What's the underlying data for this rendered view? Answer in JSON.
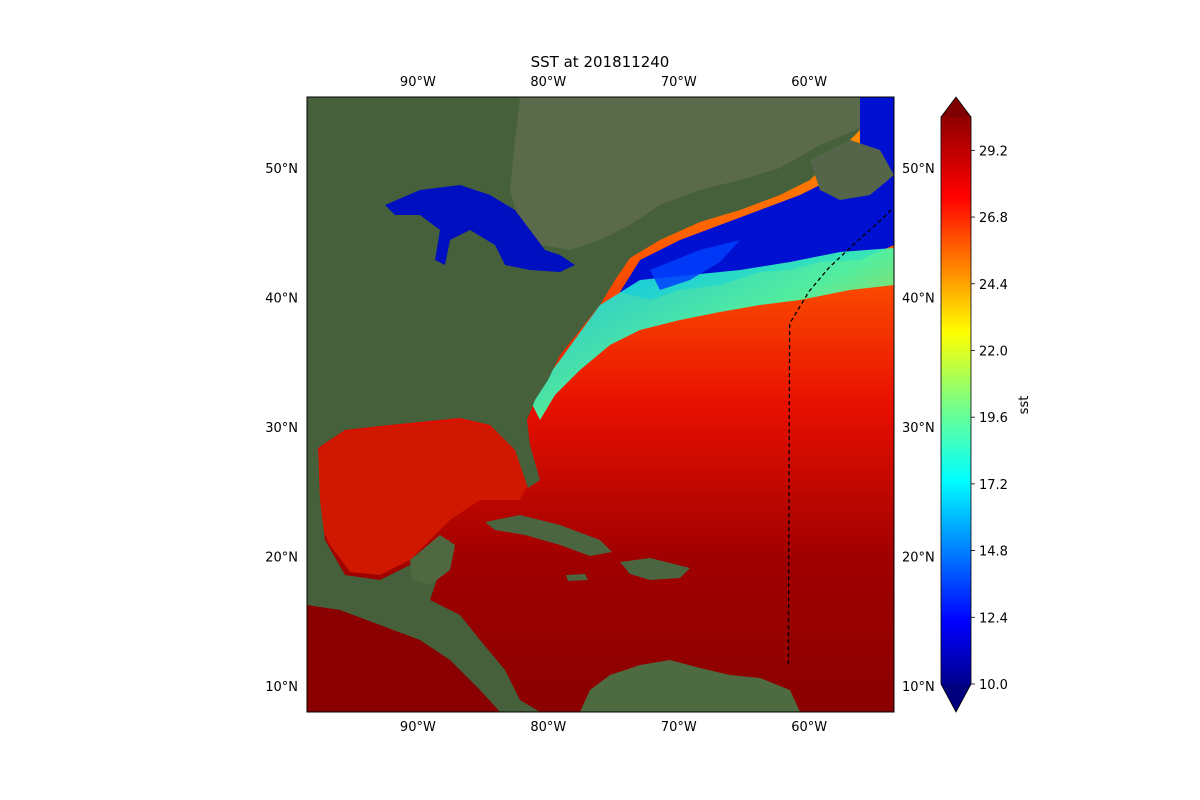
{
  "title": "SST at 201811240",
  "map": {
    "lon_range": [
      -98.5,
      -53.5
    ],
    "lat_range": [
      8,
      55.5
    ],
    "lon_ticks": [
      {
        "value": -90,
        "label": "90°W"
      },
      {
        "value": -80,
        "label": "80°W"
      },
      {
        "value": -70,
        "label": "70°W"
      },
      {
        "value": -60,
        "label": "60°W"
      }
    ],
    "lat_ticks": [
      {
        "value": 10,
        "label": "10°N"
      },
      {
        "value": 20,
        "label": "20°N"
      },
      {
        "value": 30,
        "label": "30°N"
      },
      {
        "value": 40,
        "label": "40°N"
      },
      {
        "value": 50,
        "label": "50°N"
      }
    ],
    "track_line": {
      "style": "dashed",
      "color": "#000000",
      "points": [
        [
          -61.6,
          11.7
        ],
        [
          -61.5,
          38.0
        ],
        [
          -60.0,
          40.5
        ],
        [
          -58.5,
          42.3
        ],
        [
          -56.5,
          44.2
        ],
        [
          -54.5,
          46.0
        ],
        [
          -53.5,
          47.0
        ]
      ]
    },
    "land_colors": {
      "forest": "#3f5a36",
      "dry": "#6e6a50",
      "ocean_bg": "#3a5a8a"
    }
  },
  "colorbar": {
    "label": "sst",
    "min": 10.0,
    "max": 30.4,
    "extend": "both",
    "colormap": "jet",
    "ticks": [
      {
        "value": 10.0,
        "label": "10.0"
      },
      {
        "value": 12.4,
        "label": "12.4"
      },
      {
        "value": 14.8,
        "label": "14.8"
      },
      {
        "value": 17.2,
        "label": "17.2"
      },
      {
        "value": 19.6,
        "label": "19.6"
      },
      {
        "value": 22.0,
        "label": "22.0"
      },
      {
        "value": 24.4,
        "label": "24.4"
      },
      {
        "value": 26.8,
        "label": "26.8"
      },
      {
        "value": 29.2,
        "label": "29.2"
      }
    ],
    "under_color": "#00007f",
    "over_color": "#7f0000"
  }
}
